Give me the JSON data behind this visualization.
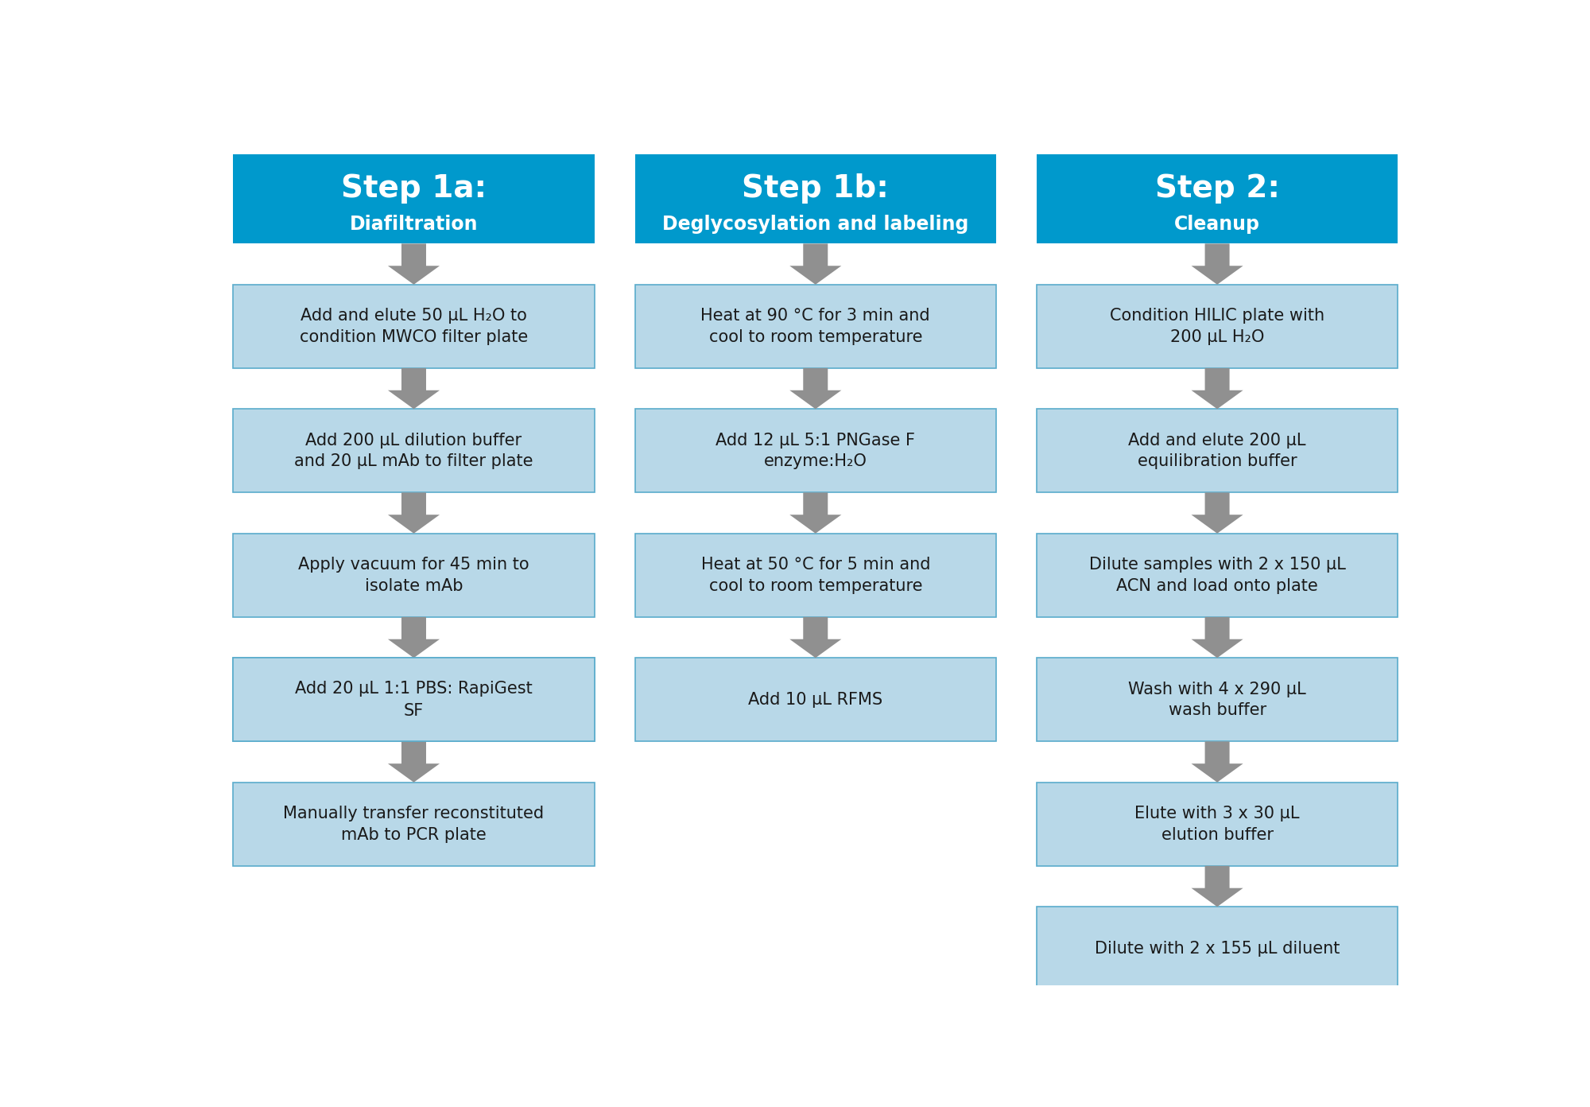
{
  "bg_color": "#ffffff",
  "header_color": "#0099cc",
  "box_color": "#b8d8e8",
  "box_border_color": "#5aaccc",
  "arrow_color": "#909090",
  "header_text_color": "#ffffff",
  "box_text_color": "#1a1a1a",
  "columns": [
    {
      "header_title": "Step 1a:",
      "header_subtitle": "Diafiltration",
      "steps": [
        {
          "text": "Add and elute 50 μL H₂O to\ncondition MWCO filter plate",
          "italic_part": null
        },
        {
          "text": "Add 200 μL dilution buffer\nand 20 μL mAb to filter plate",
          "italic_part": null
        },
        {
          "text": "Apply vacuum for 45 min to\nisolate mAb",
          "italic_part": null
        },
        {
          "text": "Add 20 μL 1:1 PBS: RapiGest\nSF",
          "italic_part": "Rapi"
        },
        {
          "text": "Manually transfer reconstituted\nmAb to PCR plate",
          "italic_part": null
        }
      ]
    },
    {
      "header_title": "Step 1b:",
      "header_subtitle": "Deglycosylation and labeling",
      "steps": [
        {
          "text": "Heat at 90 °C for 3 min and\ncool to room temperature",
          "italic_part": null
        },
        {
          "text": "Add 12 μL 5:1 PNGase F\nenzyme:H₂O",
          "italic_part": null
        },
        {
          "text": "Heat at 50 °C for 5 min and\ncool to room temperature",
          "italic_part": null
        },
        {
          "text": "Add 10 μL RFMS",
          "italic_part": null
        },
        null
      ]
    },
    {
      "header_title": "Step 2:",
      "header_subtitle": "Cleanup",
      "steps": [
        {
          "text": "Condition HILIC plate with\n200 μL H₂O",
          "italic_part": null
        },
        {
          "text": "Add and elute 200 μL\nequilibration buffer",
          "italic_part": null
        },
        {
          "text": "Dilute samples with 2 x 150 μL\nACN and load onto plate",
          "italic_part": null
        },
        {
          "text": "Wash with 4 x 290 μL\nwash buffer",
          "italic_part": null
        },
        {
          "text": "Elute with 3 x 30 μL\nelution buffer",
          "italic_part": null
        },
        {
          "text": "Dilute with 2 x 155 μL diluent",
          "italic_part": null
        }
      ]
    }
  ],
  "figsize": [
    20.0,
    13.92
  ],
  "dpi": 100
}
